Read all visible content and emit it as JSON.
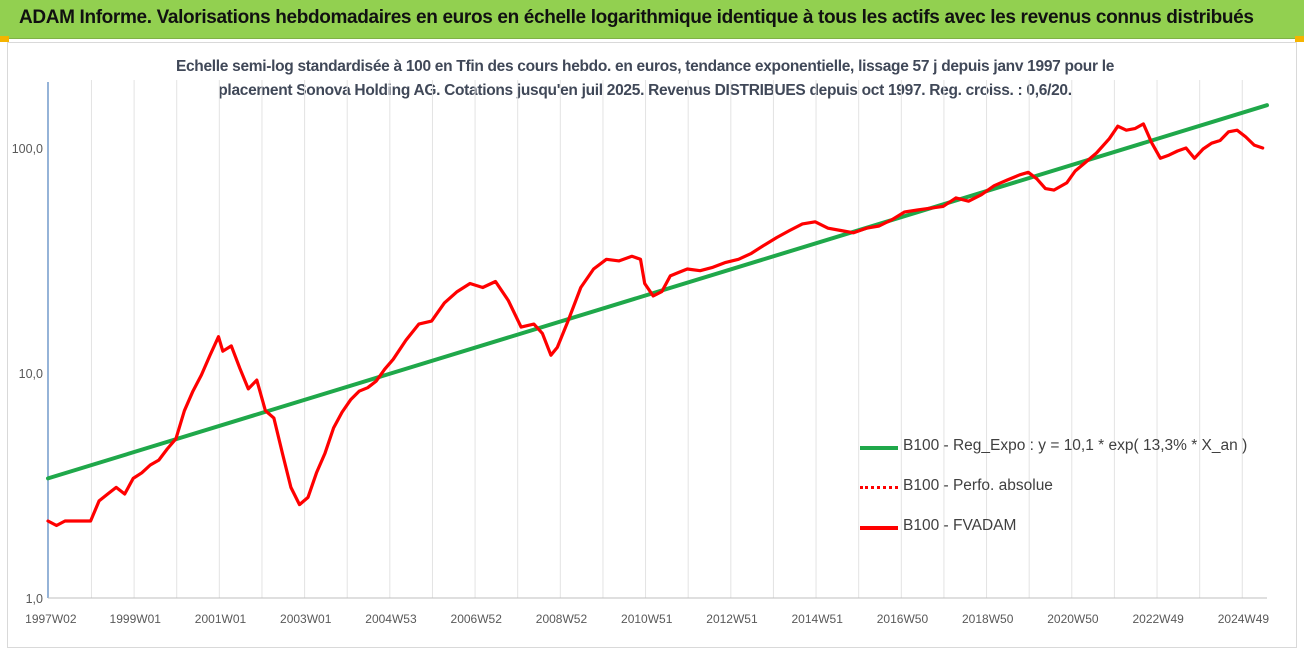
{
  "header": {
    "title": "ADAM Informe. Valorisations hebdomadaires en euros en échelle logarithmique identique à tous les actifs avec les revenus connus distribués",
    "background": "#92d050",
    "corner_color": "#f5b400"
  },
  "subtitle": {
    "line1": "Echelle semi-log standardisée à 100 en Tfin des cours hebdo. en euros, tendance exponentielle, lissage 57 j depuis janv 1997 pour le",
    "line2": "placement Sonova Holding AG. Cotations jusqu'en juil 2025. Revenus DISTRIBUES depuis oct 1997. Reg. croiss. : 0,6/20."
  },
  "chart_data": {
    "type": "line",
    "title": "Echelle semi-log standardisée à 100 en Tfin des cours hebdo. en euros, tendance exponentielle, lissage 57 j depuis janv 1997 pour le placement Sonova Holding AG. Cotations jusqu'en juil 2025. Revenus DISTRIBUES depuis oct 1997. Reg. croiss. : 0,6/20.",
    "y_scale": "log",
    "ylim": [
      1,
      250
    ],
    "xlim": [
      1997.0,
      2025.6
    ],
    "grid": "vertical",
    "legend_position": "bottom-right",
    "y_ticks": [
      {
        "value": 1,
        "label": "1,0"
      },
      {
        "value": 10,
        "label": "10,0"
      },
      {
        "value": 100,
        "label": "100,0"
      }
    ],
    "x_ticks": [
      {
        "value": 1997.02,
        "label": "1997W02"
      },
      {
        "value": 1999.0,
        "label": "1999W01"
      },
      {
        "value": 2001.0,
        "label": "2001W01"
      },
      {
        "value": 2003.0,
        "label": "2003W01"
      },
      {
        "value": 2005.0,
        "label": "2004W53"
      },
      {
        "value": 2007.0,
        "label": "2006W52"
      },
      {
        "value": 2009.0,
        "label": "2008W52"
      },
      {
        "value": 2011.0,
        "label": "2010W51"
      },
      {
        "value": 2013.0,
        "label": "2012W51"
      },
      {
        "value": 2015.0,
        "label": "2014W51"
      },
      {
        "value": 2017.0,
        "label": "2016W50"
      },
      {
        "value": 2019.0,
        "label": "2018W50"
      },
      {
        "value": 2021.0,
        "label": "2020W50"
      },
      {
        "value": 2023.0,
        "label": "2022W49"
      },
      {
        "value": 2025.0,
        "label": "2024W49"
      }
    ],
    "series": [
      {
        "name": "B100 - Reg_Expo : y = 10,1 * exp( 13,3% *  X_an )",
        "color": "#1fa84a",
        "style": "solid",
        "x": [
          1997.0,
          2025.6
        ],
        "y": [
          3.4,
          155
        ]
      },
      {
        "name": "B100 - Perfo. absolue",
        "color": "#ff0000",
        "style": "dotted",
        "x": [],
        "y": []
      },
      {
        "name": "B100 - FVADAM",
        "color": "#ff0000",
        "style": "solid",
        "x": [
          1997.0,
          1997.2,
          1997.4,
          1997.6,
          1997.8,
          1998.0,
          1998.2,
          1998.4,
          1998.6,
          1998.8,
          1999.0,
          1999.2,
          1999.4,
          1999.6,
          1999.8,
          2000.0,
          2000.2,
          2000.4,
          2000.6,
          2000.8,
          2001.0,
          2001.1,
          2001.3,
          2001.5,
          2001.7,
          2001.9,
          2002.1,
          2002.3,
          2002.5,
          2002.7,
          2002.9,
          2003.1,
          2003.3,
          2003.5,
          2003.7,
          2003.9,
          2004.1,
          2004.3,
          2004.5,
          2004.7,
          2004.9,
          2005.1,
          2005.4,
          2005.7,
          2006.0,
          2006.3,
          2006.6,
          2006.9,
          2007.2,
          2007.5,
          2007.8,
          2008.1,
          2008.4,
          2008.6,
          2008.8,
          2008.95,
          2009.2,
          2009.5,
          2009.8,
          2010.1,
          2010.4,
          2010.7,
          2010.9,
          2011.0,
          2011.2,
          2011.4,
          2011.6,
          2011.8,
          2012.0,
          2012.3,
          2012.6,
          2012.9,
          2013.2,
          2013.5,
          2013.8,
          2014.1,
          2014.4,
          2014.7,
          2015.0,
          2015.3,
          2015.6,
          2015.9,
          2016.2,
          2016.5,
          2016.8,
          2017.1,
          2017.4,
          2017.7,
          2018.0,
          2018.3,
          2018.6,
          2018.9,
          2019.2,
          2019.5,
          2019.8,
          2020.0,
          2020.2,
          2020.4,
          2020.6,
          2020.9,
          2021.1,
          2021.3,
          2021.6,
          2021.9,
          2022.1,
          2022.3,
          2022.5,
          2022.7,
          2022.9,
          2023.1,
          2023.3,
          2023.5,
          2023.7,
          2023.9,
          2024.1,
          2024.3,
          2024.5,
          2024.7,
          2024.9,
          2025.1,
          2025.3,
          2025.5
        ],
        "y": [
          2.2,
          2.1,
          2.2,
          2.2,
          2.2,
          2.2,
          2.7,
          2.9,
          3.1,
          2.9,
          3.4,
          3.6,
          3.9,
          4.1,
          4.6,
          5.1,
          6.8,
          8.3,
          9.8,
          12.0,
          14.5,
          12.5,
          13.2,
          10.5,
          8.5,
          9.3,
          6.8,
          6.3,
          4.4,
          3.1,
          2.6,
          2.8,
          3.6,
          4.4,
          5.7,
          6.7,
          7.6,
          8.3,
          8.6,
          9.2,
          10.4,
          11.5,
          14.0,
          16.5,
          17.0,
          20.5,
          23.0,
          25.0,
          24.0,
          25.5,
          21.0,
          16.0,
          16.5,
          15.0,
          12.0,
          13.0,
          17.0,
          24.0,
          29.0,
          32.0,
          31.5,
          33.0,
          32.0,
          25.0,
          22.0,
          23.0,
          27.0,
          28.0,
          29.0,
          28.5,
          29.5,
          31.0,
          32.0,
          34.0,
          37.0,
          40.0,
          43.0,
          46.0,
          47.0,
          44.0,
          43.0,
          42.0,
          44.0,
          45.0,
          48.0,
          52.0,
          53.0,
          54.0,
          55.0,
          60.0,
          58.0,
          62.0,
          68.0,
          72.0,
          76.0,
          78.0,
          73.0,
          66.0,
          65.0,
          70.0,
          79.0,
          85.0,
          95.0,
          110.0,
          125.0,
          120.0,
          122.0,
          128.0,
          105.0,
          90.0,
          93.0,
          97.0,
          100.0,
          90.0,
          99.0,
          105.0,
          108.0,
          118.0,
          120.0,
          112.0,
          103.0,
          100.0
        ]
      }
    ]
  }
}
